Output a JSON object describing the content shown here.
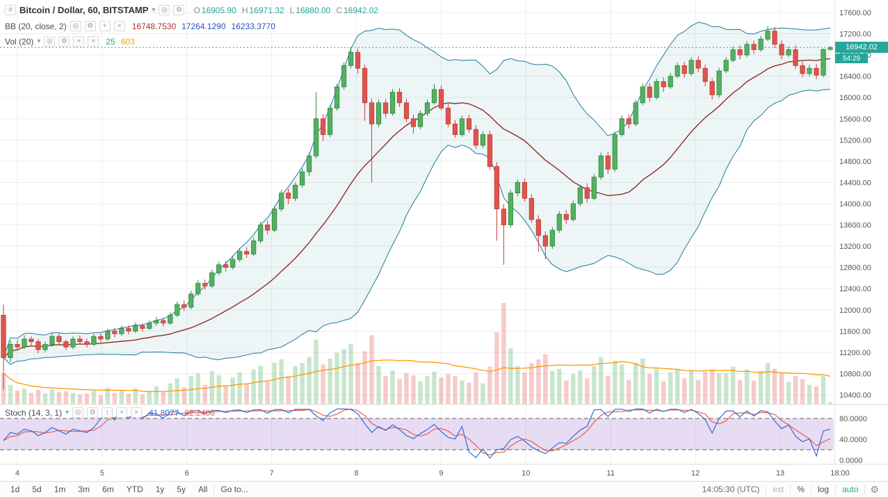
{
  "header": {
    "symbol_title": "Bitcoin / Dollar, 60, BITSTAMP",
    "ohlc": {
      "o_label": "O",
      "o": "16905.90",
      "h_label": "H",
      "h": "16971.32",
      "l_label": "L",
      "l": "16880.00",
      "c_label": "C",
      "c": "16942.02"
    }
  },
  "indicators_legend": {
    "bb": {
      "label": "BB (20, close, 2)",
      "basis": "16748.7530",
      "upper": "17264.1290",
      "lower": "16233.3770"
    },
    "vol": {
      "label": "Vol (20)",
      "value": "25",
      "ma": "603"
    },
    "stoch": {
      "label": "Stoch (14, 3, 1)",
      "k": "41.8077",
      "d": "82.2406"
    }
  },
  "price_marker": {
    "price": "16942.02",
    "countdown": "54:29"
  },
  "toolbar": {
    "ranges": [
      "1d",
      "5d",
      "1m",
      "3m",
      "6m",
      "YTD",
      "1y",
      "5y",
      "All"
    ],
    "goto": "Go to...",
    "clock": "14:05:30 (UTC)",
    "ext": "ext",
    "percent": "%",
    "log": "log",
    "auto": "auto"
  },
  "icons": {
    "menu": "≡",
    "caret": "▾",
    "eye": "◎",
    "gear": "⚙",
    "plus": "+",
    "close": "×",
    "arrows": "↕"
  },
  "theme": {
    "accent": "#26a69a",
    "up": "#53b15f",
    "down": "#e0544e",
    "up_border": "#33853f",
    "down_border": "#c03c35",
    "vol_up": "rgba(83,177,95,0.32)",
    "vol_down": "rgba(224,84,78,0.30)",
    "vol_ma": "#ff9800",
    "bb_band": "#1f7a9e",
    "bb_basis": "#8e2d22",
    "bb_fill": "rgba(31,122,158,0.08)",
    "bb_value_basis": "#b03024",
    "bb_value_band": "#2356c0",
    "stoch_k": "#2b6fd4",
    "stoch_d": "#eb5b4f",
    "stoch_fill": "rgba(146,96,201,0.22)",
    "grid": "#ededed",
    "axis_text": "#555555",
    "separator": "#d8d8d8",
    "dashed": "#606060"
  },
  "chart_data": {
    "type": "candlestick",
    "title": "Bitcoin / Dollar, 60, BITSTAMP",
    "legend_position": "top-left",
    "grid": true,
    "y_axis": {
      "min": 10400,
      "max": 17600,
      "step": 400,
      "labels": [
        "17600.00",
        "17200.00",
        "16800.00",
        "16400.00",
        "16000.00",
        "15600.00",
        "15200.00",
        "14800.00",
        "14400.00",
        "14000.00",
        "13600.00",
        "13200.00",
        "12800.00",
        "12400.00",
        "12000.00",
        "11600.00",
        "11200.00",
        "10800.00",
        "10400.00"
      ]
    },
    "x_ticks": [
      {
        "label": "4",
        "i": 2
      },
      {
        "label": "5",
        "i": 14.2
      },
      {
        "label": "6",
        "i": 26.4
      },
      {
        "label": "7",
        "i": 38.6
      },
      {
        "label": "8",
        "i": 50.8
      },
      {
        "label": "9",
        "i": 63
      },
      {
        "label": "10",
        "i": 75.2
      },
      {
        "label": "11",
        "i": 87.4
      },
      {
        "label": "12",
        "i": 99.6
      },
      {
        "label": "13",
        "i": 111.8
      },
      {
        "label": "18:00",
        "i": 120.4
      }
    ],
    "candle_format": [
      "open",
      "high",
      "low",
      "close",
      "volume"
    ],
    "candles": [
      [
        11900,
        12100,
        10500,
        11100,
        420
      ],
      [
        11100,
        11420,
        11020,
        11350,
        260
      ],
      [
        11350,
        11430,
        11230,
        11300,
        180
      ],
      [
        11300,
        11520,
        11260,
        11450,
        210
      ],
      [
        11450,
        11500,
        11330,
        11400,
        150
      ],
      [
        11400,
        11450,
        11180,
        11250,
        190
      ],
      [
        11250,
        11400,
        11200,
        11350,
        140
      ],
      [
        11350,
        11560,
        11300,
        11500,
        200
      ],
      [
        11500,
        11560,
        11340,
        11400,
        160
      ],
      [
        11400,
        11440,
        11240,
        11300,
        170
      ],
      [
        11300,
        11500,
        11260,
        11450,
        150
      ],
      [
        11450,
        11520,
        11350,
        11400,
        130
      ],
      [
        11400,
        11460,
        11290,
        11350,
        140
      ],
      [
        11350,
        11550,
        11320,
        11500,
        180
      ],
      [
        11500,
        11560,
        11390,
        11450,
        120
      ],
      [
        11450,
        11650,
        11420,
        11600,
        220
      ],
      [
        11600,
        11660,
        11480,
        11550,
        150
      ],
      [
        11550,
        11700,
        11510,
        11650,
        190
      ],
      [
        11650,
        11710,
        11540,
        11600,
        140
      ],
      [
        11600,
        11760,
        11570,
        11700,
        210
      ],
      [
        11700,
        11750,
        11590,
        11650,
        130
      ],
      [
        11650,
        11800,
        11620,
        11750,
        180
      ],
      [
        11750,
        11870,
        11700,
        11800,
        240
      ],
      [
        11800,
        11850,
        11690,
        11750,
        160
      ],
      [
        11750,
        11950,
        11720,
        11900,
        280
      ],
      [
        11900,
        12160,
        11860,
        12100,
        350
      ],
      [
        12100,
        12180,
        11980,
        12050,
        230
      ],
      [
        12050,
        12360,
        12010,
        12300,
        380
      ],
      [
        12300,
        12560,
        12260,
        12500,
        420
      ],
      [
        12500,
        12570,
        12380,
        12450,
        260
      ],
      [
        12450,
        12760,
        12410,
        12700,
        450
      ],
      [
        12700,
        12910,
        12650,
        12850,
        390
      ],
      [
        12850,
        12920,
        12720,
        12800,
        240
      ],
      [
        12800,
        13010,
        12760,
        12950,
        360
      ],
      [
        12950,
        13160,
        12900,
        13100,
        430
      ],
      [
        13100,
        13180,
        12980,
        13050,
        280
      ],
      [
        13050,
        13360,
        13010,
        13300,
        470
      ],
      [
        13300,
        13660,
        13250,
        13600,
        520
      ],
      [
        13600,
        13680,
        13420,
        13500,
        310
      ],
      [
        13500,
        13960,
        13460,
        13900,
        560
      ],
      [
        13900,
        14260,
        13850,
        14200,
        610
      ],
      [
        14200,
        14280,
        13990,
        14100,
        380
      ],
      [
        14100,
        14400,
        14050,
        14350,
        520
      ],
      [
        14350,
        14660,
        14300,
        14600,
        560
      ],
      [
        14600,
        14960,
        14520,
        14900,
        640
      ],
      [
        14900,
        16100,
        14850,
        15600,
        880
      ],
      [
        15600,
        15680,
        15180,
        15300,
        540
      ],
      [
        15300,
        15860,
        15250,
        15800,
        620
      ],
      [
        15800,
        16260,
        15750,
        16200,
        700
      ],
      [
        16200,
        16660,
        16150,
        16600,
        750
      ],
      [
        16600,
        16950,
        16550,
        16850,
        820
      ],
      [
        16850,
        16920,
        16450,
        16550,
        560
      ],
      [
        16550,
        16620,
        15560,
        15900,
        720
      ],
      [
        15900,
        15980,
        14400,
        15500,
        940
      ],
      [
        15500,
        15960,
        15440,
        15900,
        520
      ],
      [
        15900,
        15970,
        15620,
        15700,
        380
      ],
      [
        15700,
        16160,
        15660,
        16100,
        460
      ],
      [
        16100,
        16180,
        15820,
        15900,
        340
      ],
      [
        15900,
        15970,
        15540,
        15600,
        420
      ],
      [
        15600,
        15680,
        15320,
        15450,
        390
      ],
      [
        15450,
        15760,
        15400,
        15700,
        310
      ],
      [
        15700,
        15960,
        15650,
        15900,
        380
      ],
      [
        15900,
        16260,
        15860,
        16150,
        440
      ],
      [
        16150,
        16220,
        15760,
        15800,
        360
      ],
      [
        15800,
        15880,
        15440,
        15500,
        410
      ],
      [
        15500,
        15570,
        15240,
        15300,
        380
      ],
      [
        15300,
        15660,
        15260,
        15600,
        320
      ],
      [
        15600,
        15670,
        15340,
        15400,
        290
      ],
      [
        15400,
        15480,
        15040,
        15100,
        430
      ],
      [
        15100,
        15360,
        15050,
        15300,
        280
      ],
      [
        15300,
        15370,
        14640,
        14700,
        510
      ],
      [
        14700,
        14780,
        13300,
        13900,
        980
      ],
      [
        13900,
        13990,
        12850,
        13600,
        1380
      ],
      [
        13600,
        14260,
        13550,
        14200,
        760
      ],
      [
        14200,
        14460,
        14140,
        14400,
        520
      ],
      [
        14400,
        14470,
        14040,
        14100,
        430
      ],
      [
        14100,
        14180,
        13640,
        13700,
        560
      ],
      [
        13700,
        13780,
        13100,
        13400,
        610
      ],
      [
        13400,
        13480,
        12950,
        13200,
        680
      ],
      [
        13200,
        13560,
        13150,
        13500,
        450
      ],
      [
        13500,
        13860,
        13450,
        13800,
        480
      ],
      [
        13800,
        13880,
        13620,
        13700,
        320
      ],
      [
        13700,
        14060,
        13660,
        14000,
        410
      ],
      [
        14000,
        14360,
        13950,
        14300,
        460
      ],
      [
        14300,
        14380,
        14020,
        14100,
        350
      ],
      [
        14100,
        14560,
        14060,
        14500,
        520
      ],
      [
        14500,
        14960,
        14450,
        14900,
        640
      ],
      [
        14900,
        14980,
        14560,
        14650,
        380
      ],
      [
        14650,
        15360,
        14600,
        15300,
        590
      ],
      [
        15300,
        15660,
        15260,
        15600,
        540
      ],
      [
        15600,
        15680,
        15420,
        15500,
        330
      ],
      [
        15500,
        15960,
        15460,
        15900,
        560
      ],
      [
        15900,
        16260,
        15860,
        16200,
        620
      ],
      [
        16200,
        16270,
        15920,
        16000,
        410
      ],
      [
        16000,
        16360,
        15960,
        16300,
        480
      ],
      [
        16300,
        16380,
        16110,
        16200,
        310
      ],
      [
        16200,
        16460,
        16160,
        16400,
        430
      ],
      [
        16400,
        16660,
        16360,
        16600,
        480
      ],
      [
        16600,
        16670,
        16370,
        16450,
        350
      ],
      [
        16450,
        16760,
        16410,
        16700,
        460
      ],
      [
        16700,
        16780,
        16470,
        16550,
        330
      ],
      [
        16550,
        16620,
        16210,
        16300,
        440
      ],
      [
        16300,
        16360,
        15960,
        16050,
        470
      ],
      [
        16050,
        16560,
        16000,
        16500,
        420
      ],
      [
        16500,
        16760,
        16460,
        16700,
        420
      ],
      [
        16700,
        16960,
        16660,
        16900,
        510
      ],
      [
        16900,
        16980,
        16720,
        16800,
        330
      ],
      [
        16800,
        17060,
        16760,
        17000,
        470
      ],
      [
        17000,
        17070,
        16820,
        16900,
        320
      ],
      [
        16900,
        17160,
        16860,
        17100,
        450
      ],
      [
        17100,
        17350,
        17060,
        17250,
        560
      ],
      [
        17250,
        17330,
        16930,
        17000,
        480
      ],
      [
        17000,
        17080,
        16720,
        16800,
        420
      ],
      [
        16800,
        16960,
        16760,
        16900,
        300
      ],
      [
        16900,
        16980,
        16540,
        16600,
        380
      ],
      [
        16600,
        16680,
        16380,
        16450,
        340
      ],
      [
        16450,
        16620,
        16400,
        16550,
        260
      ],
      [
        16550,
        16630,
        16340,
        16420,
        240
      ],
      [
        16420,
        16920,
        16380,
        16905,
        380
      ],
      [
        16905.9,
        16971.32,
        16880,
        16942.02,
        25
      ]
    ],
    "indicators": {
      "bollinger": {
        "period": 20,
        "source": "close",
        "stddev": 2,
        "display_values": [
          16748.753,
          17264.129,
          16233.377
        ]
      },
      "volume_ma": {
        "period": 20,
        "display_values": [
          25,
          603
        ]
      },
      "stochastic": {
        "k": 14,
        "d": 3,
        "smooth": 1,
        "display_values": [
          41.8077,
          82.2406
        ],
        "bands": [
          80,
          20
        ],
        "axis_labels": [
          "80.0000",
          "40.0000",
          "0.0000"
        ]
      }
    },
    "price_line": {
      "value": 16942.02,
      "countdown": "54:29"
    }
  }
}
